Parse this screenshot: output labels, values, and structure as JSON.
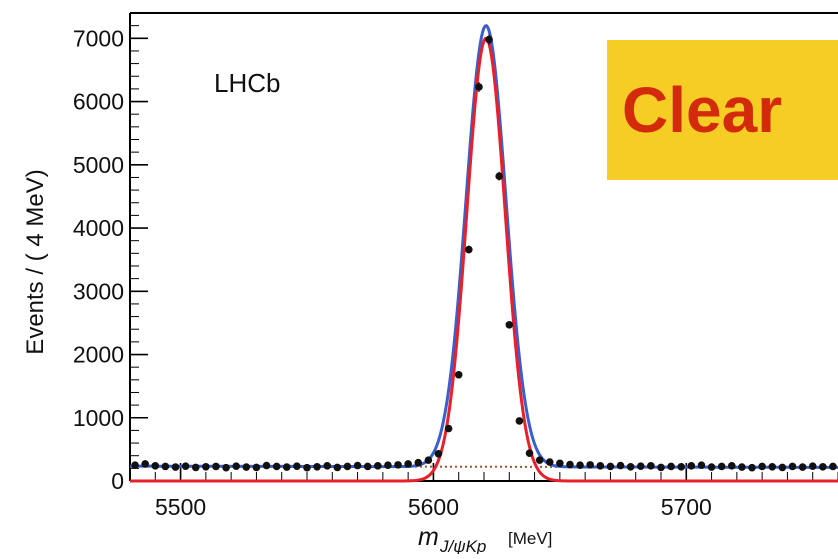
{
  "chart_data": {
    "type": "line",
    "experiment_label": "LHCb",
    "banner_text": "Clear",
    "ylabel": "Events / ( 4 MeV)",
    "xlabel": {
      "symbol": "m",
      "subscript": "J/ψKp",
      "unit": "[MeV]"
    },
    "xlim": [
      5480,
      5760
    ],
    "ylim": [
      0,
      7400
    ],
    "x_ticks": [
      5500,
      5600,
      5700
    ],
    "y_ticks": [
      0,
      1000,
      2000,
      3000,
      4000,
      5000,
      6000,
      7000
    ],
    "colors": {
      "data_points": "#111111",
      "total_fit": "#3a5fcd",
      "signal": "#e8202a",
      "background": "#a0522d",
      "banner_fill": "#f5cd24",
      "banner_text": "#d42a0c"
    },
    "series": [
      {
        "kind": "points",
        "x": [
          5482,
          5486,
          5490,
          5494,
          5498,
          5502,
          5506,
          5510,
          5514,
          5518,
          5522,
          5526,
          5530,
          5534,
          5538,
          5542,
          5546,
          5550,
          5554,
          5558,
          5562,
          5566,
          5570,
          5574,
          5578,
          5582,
          5586,
          5590,
          5594,
          5598,
          5602,
          5606,
          5610,
          5614,
          5618,
          5622,
          5626,
          5630,
          5634,
          5638,
          5642,
          5646,
          5650,
          5654,
          5658,
          5662,
          5666,
          5670,
          5674,
          5678,
          5682,
          5686,
          5690,
          5694,
          5698,
          5702,
          5706,
          5710,
          5714,
          5718,
          5722,
          5726,
          5730,
          5734,
          5738,
          5742,
          5746,
          5750,
          5754,
          5758
        ],
        "y": [
          250,
          270,
          240,
          230,
          220,
          235,
          215,
          225,
          230,
          210,
          235,
          220,
          215,
          245,
          230,
          220,
          235,
          210,
          225,
          240,
          215,
          230,
          245,
          230,
          240,
          250,
          255,
          270,
          290,
          330,
          430,
          830,
          1680,
          3660,
          6230,
          6980,
          4820,
          2470,
          950,
          440,
          330,
          300,
          280,
          260,
          250,
          255,
          240,
          230,
          245,
          225,
          235,
          240,
          215,
          230,
          225,
          240,
          250,
          220,
          230,
          240,
          220,
          210,
          230,
          225,
          215,
          230,
          220,
          235,
          225,
          230
        ]
      },
      {
        "kind": "fit",
        "mean": 5620.8,
        "signal_peak": 7000,
        "signal_sigma": 7.6,
        "total_peak": 7200,
        "total_sigma": 7.9
      },
      {
        "kind": "background",
        "level_left": 235,
        "level_right": 215
      }
    ]
  }
}
